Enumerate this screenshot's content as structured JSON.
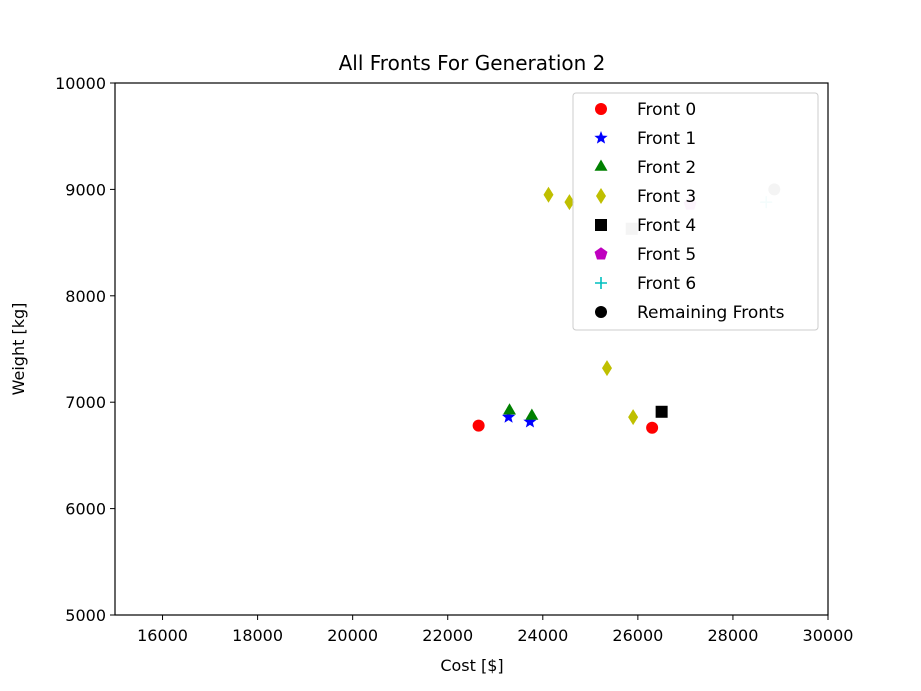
{
  "chart_data": {
    "type": "scatter",
    "title": "All Fronts For Generation 2",
    "xlabel": "Cost [$]",
    "ylabel": "Weight [kg]",
    "xlim": [
      15000,
      30000
    ],
    "ylim": [
      5000,
      10000
    ],
    "xticks": [
      16000,
      18000,
      20000,
      22000,
      24000,
      26000,
      28000,
      30000
    ],
    "yticks": [
      5000,
      6000,
      7000,
      8000,
      9000,
      10000
    ],
    "grid": false,
    "legend_position": "top-right",
    "series": [
      {
        "name": "Front 0",
        "marker": "circle",
        "color": "#ff0000",
        "points": [
          [
            22650,
            6780
          ],
          [
            26300,
            6760
          ]
        ]
      },
      {
        "name": "Front 1",
        "marker": "star",
        "color": "#0000ff",
        "points": [
          [
            23280,
            6860
          ],
          [
            23730,
            6815
          ]
        ]
      },
      {
        "name": "Front 2",
        "marker": "triangle",
        "color": "#008000",
        "points": [
          [
            23300,
            6920
          ],
          [
            23770,
            6870
          ]
        ]
      },
      {
        "name": "Front 3",
        "marker": "diamond",
        "color": "#bfbf00",
        "points": [
          [
            24120,
            8950
          ],
          [
            24560,
            8880
          ],
          [
            25350,
            7320
          ],
          [
            25900,
            6860
          ]
        ]
      },
      {
        "name": "Front 4",
        "marker": "square",
        "color": "#000000",
        "points": [
          [
            26500,
            6910
          ]
        ]
      },
      {
        "name": "Front 5",
        "marker": "pentagon",
        "color": "#bf00bf",
        "points": []
      },
      {
        "name": "Front 6",
        "marker": "plus",
        "color": "#00bfbf",
        "points": []
      },
      {
        "name": "Remaining Fronts",
        "marker": "circle",
        "color": "#000000",
        "points": []
      }
    ],
    "remaining_points": [
      {
        "marker": "square",
        "color": "#c8c8c8",
        "x": 25870,
        "y": 8630
      },
      {
        "marker": "pentagon",
        "color": "#f0c8f0",
        "x": 27100,
        "y": 8860
      },
      {
        "marker": "plus",
        "color": "#c8f0f0",
        "x": 28700,
        "y": 8880
      },
      {
        "marker": "circle",
        "color": "#c8c8c8",
        "x": 28870,
        "y": 9000
      }
    ]
  }
}
